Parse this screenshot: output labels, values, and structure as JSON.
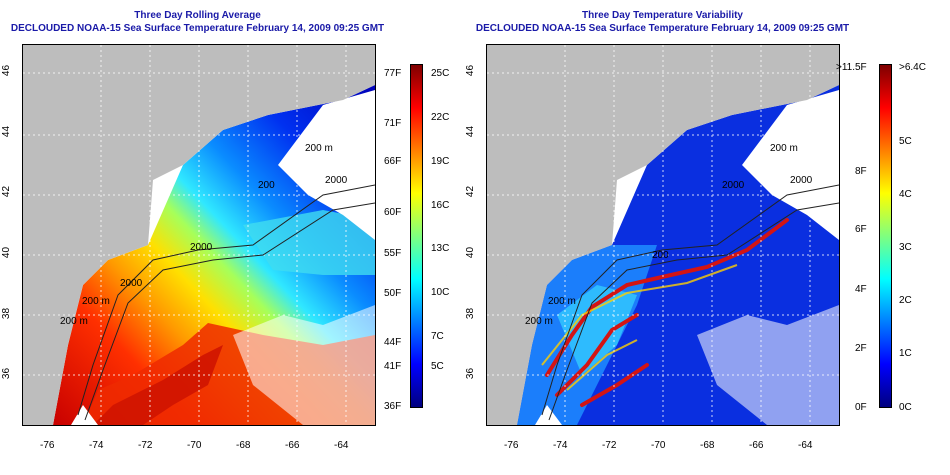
{
  "panels": [
    {
      "title": "Three Day Rolling Average",
      "subtitle": "DECLOUDED NOAA-15 Sea Surface Temperature February 14, 2009 09:25 GMT",
      "x_ticks": [
        "-76",
        "-74",
        "-72",
        "-70",
        "-68",
        "-66",
        "-64"
      ],
      "y_ticks": [
        "46",
        "44",
        "42",
        "40",
        "38",
        "36"
      ],
      "contour_labels": [
        "200 m",
        "2000",
        "200",
        "2000",
        "200 m",
        "2000",
        "200 m"
      ],
      "colorbar": {
        "left_labels": [
          "77F",
          "71F",
          "66F",
          "60F",
          "55F",
          "50F",
          "44F",
          "41F",
          "36F"
        ],
        "right_labels": [
          "25C",
          "22C",
          "19C",
          "16C",
          "13C",
          "10C",
          "7C",
          "5C"
        ]
      }
    },
    {
      "title": "Three Day Temperature Variability",
      "subtitle": "DECLOUDED NOAA-15 Sea Surface Temperature February 14, 2009 09:25 GMT",
      "x_ticks": [
        "-76",
        "-74",
        "-72",
        "-70",
        "-68",
        "-66",
        "-64"
      ],
      "y_ticks": [
        "46",
        "44",
        "42",
        "40",
        "38",
        "36"
      ],
      "contour_labels": [
        "200 m",
        "2000",
        "2000",
        "200 m",
        "200",
        "200 m"
      ],
      "colorbar": {
        "left_labels": [
          ">11.5F",
          "8F",
          "6F",
          "4F",
          "2F",
          "0F"
        ],
        "right_labels": [
          ">6.4C",
          "5C",
          "4C",
          "3C",
          "2C",
          "1C",
          "0C"
        ]
      }
    }
  ],
  "colors": {
    "land": "#bdbdbd",
    "title": "#1a1aa8",
    "colormap": [
      "#00007f",
      "#0000ff",
      "#007fff",
      "#00ffff",
      "#7fff7f",
      "#ffff00",
      "#ff7f00",
      "#ff0000",
      "#7f0000"
    ]
  }
}
